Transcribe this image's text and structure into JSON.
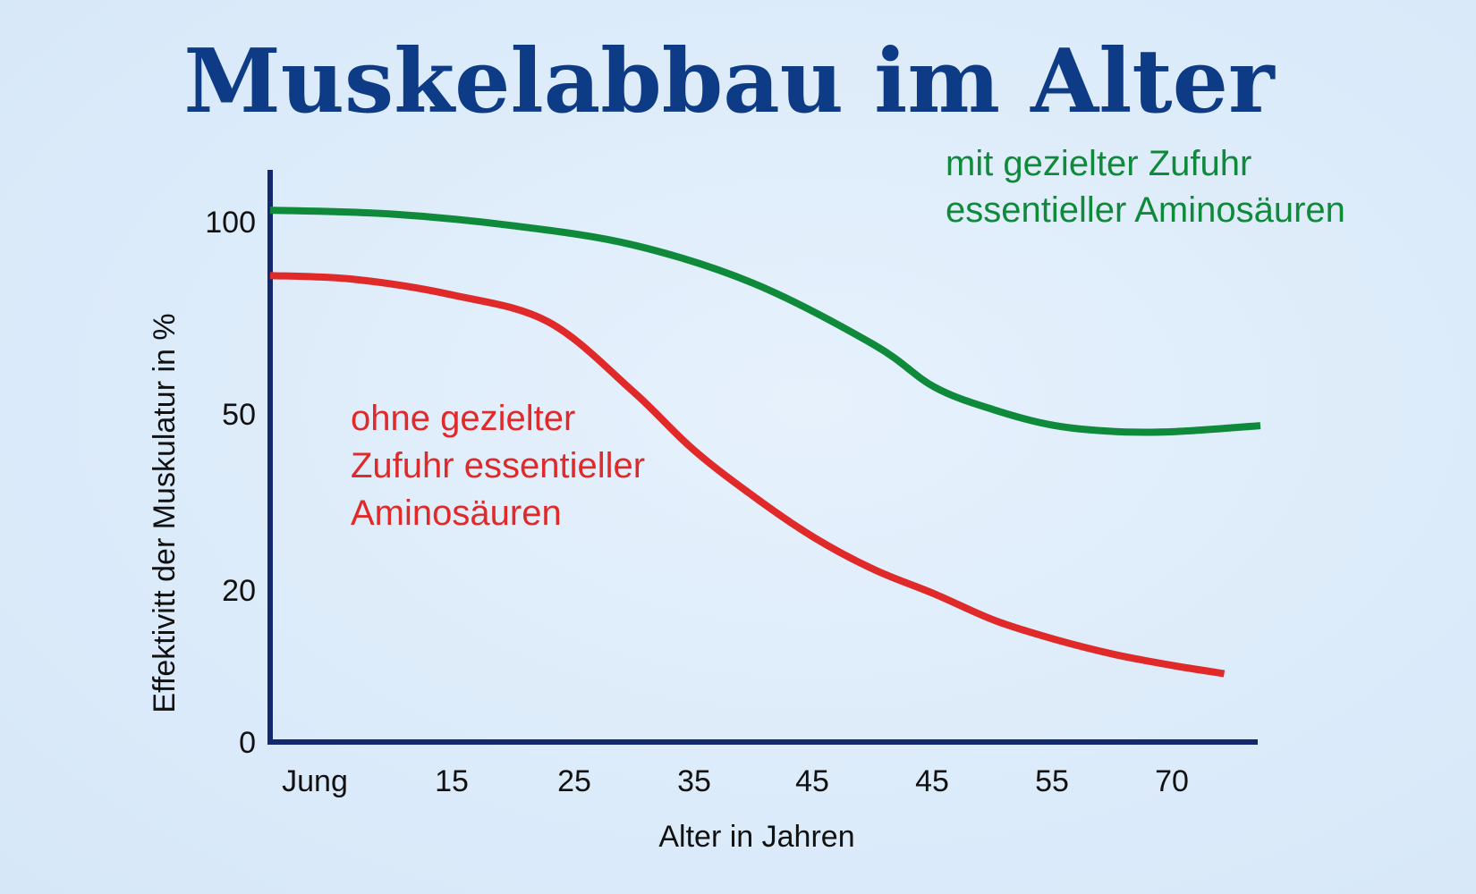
{
  "colors": {
    "title": "#0e3b86",
    "axis": "#13296e",
    "with_supply": "#0f8a3a",
    "without_supply": "#e02a2a"
  },
  "chart_data": {
    "type": "line",
    "title": "Muskelabbau im Alter",
    "xlabel": "Alter in Jahren",
    "ylabel": "Effektivitt der Muskulatur in %",
    "x_ticks": [
      "Jung",
      "15",
      "25",
      "35",
      "45",
      "45",
      "55",
      "70"
    ],
    "y_ticks": [
      0,
      20,
      50,
      100
    ],
    "grid": false,
    "series": [
      {
        "name": "mit gezielter Zufuhr essentieller Aminosäuren",
        "annotation_lines": [
          "mit gezielter Zufuhr",
          "essentieller Aminosäuren"
        ],
        "color": "#0f8a3a",
        "x": [
          0,
          1,
          2,
          3,
          4,
          5,
          5.5,
          6,
          6.5,
          7,
          7.5,
          8.2
        ],
        "y": [
          103,
          102,
          99,
          94,
          84,
          68,
          57,
          51,
          48,
          47,
          47,
          48
        ]
      },
      {
        "name": "ohne gezielter Zufuhr essentieller Aminosäuren",
        "annotation_lines": [
          "ohne gezielter",
          "Zufuhr essentieller",
          "Aminosäuren"
        ],
        "color": "#e02a2a",
        "x": [
          0,
          0.7,
          1.5,
          2.3,
          3,
          3.5,
          4,
          4.5,
          5,
          5.5,
          6,
          6.5,
          7,
          7.5,
          7.9
        ],
        "y": [
          86,
          85,
          81,
          74,
          56,
          44,
          36,
          29,
          23.5,
          19.5,
          16,
          13.5,
          11.5,
          10,
          9
        ]
      }
    ]
  }
}
